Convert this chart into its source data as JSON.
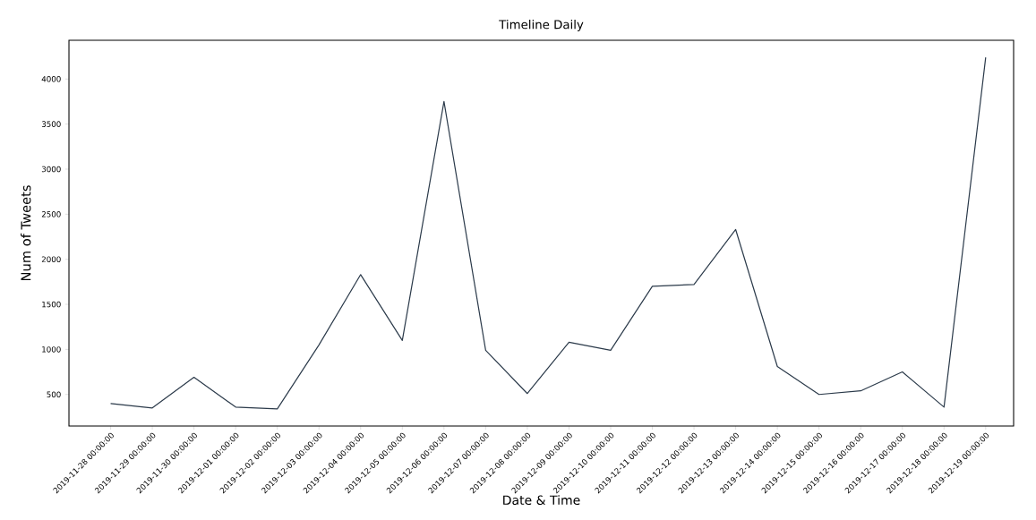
{
  "chart_data": {
    "type": "line",
    "title": "Timeline Daily",
    "xlabel": "Date & Time",
    "ylabel": "Num of Tweets",
    "categories": [
      "2019-11-28 00:00:00",
      "2019-11-29 00:00:00",
      "2019-11-30 00:00:00",
      "2019-12-01 00:00:00",
      "2019-12-02 00:00:00",
      "2019-12-03 00:00:00",
      "2019-12-04 00:00:00",
      "2019-12-05 00:00:00",
      "2019-12-06 00:00:00",
      "2019-12-07 00:00:00",
      "2019-12-08 00:00:00",
      "2019-12-09 00:00:00",
      "2019-12-10 00:00:00",
      "2019-12-11 00:00:00",
      "2019-12-12 00:00:00",
      "2019-12-13 00:00:00",
      "2019-12-14 00:00:00",
      "2019-12-15 00:00:00",
      "2019-12-16 00:00:00",
      "2019-12-17 00:00:00",
      "2019-12-18 00:00:00",
      "2019-12-19 00:00:00"
    ],
    "values": [
      400,
      350,
      690,
      360,
      340,
      1050,
      1830,
      1100,
      3750,
      990,
      510,
      1080,
      990,
      1700,
      1720,
      2330,
      810,
      500,
      540,
      750,
      360,
      4240
    ],
    "color": "#2b3a4a",
    "ylim": [
      150,
      4430
    ],
    "yticks": [
      500,
      1000,
      1500,
      2000,
      2500,
      3000,
      3500,
      4000
    ],
    "grid": false,
    "marker": "none",
    "line_style": "solid"
  }
}
